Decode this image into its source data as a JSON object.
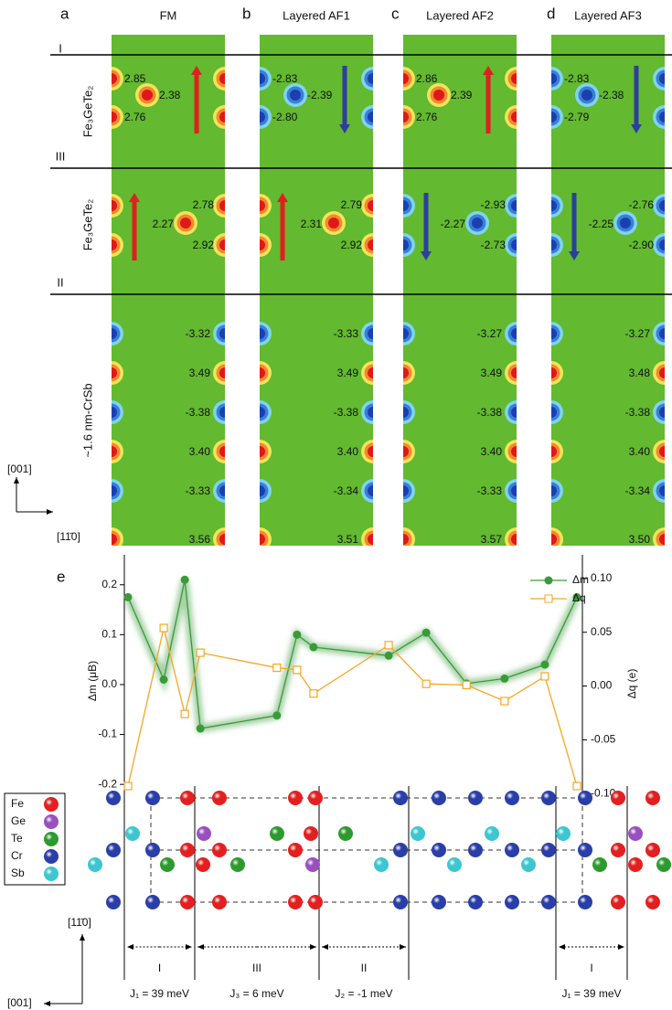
{
  "panels": [
    {
      "letter": "a",
      "title": "FM",
      "rows": [
        [
          "2.85",
          "2.38",
          "2.76"
        ],
        [
          "2.78",
          "2.27",
          "2.92"
        ],
        [
          "-3.32",
          "3.49",
          "-3.38",
          "3.40",
          "-3.33",
          "3.56"
        ]
      ]
    },
    {
      "letter": "b",
      "title": "Layered AF1",
      "rows": [
        [
          "-2.83",
          "-2.39",
          "-2.80"
        ],
        [
          "2.79",
          "2.31",
          "2.92"
        ],
        [
          "-3.33",
          "3.49",
          "-3.38",
          "3.40",
          "-3.34",
          "3.51"
        ]
      ]
    },
    {
      "letter": "c",
      "title": "Layered AF2",
      "rows": [
        [
          "2.86",
          "2.39",
          "2.76"
        ],
        [
          "-2.93",
          "-2.27",
          "-2.73"
        ],
        [
          "-3.27",
          "3.49",
          "-3.38",
          "3.40",
          "-3.33",
          "3.57"
        ]
      ]
    },
    {
      "letter": "d",
      "title": "Layered AF3",
      "rows": [
        [
          "-2.83",
          "-2.38",
          "-2.79"
        ],
        [
          "-2.76",
          "-2.25",
          "-2.90"
        ],
        [
          "-3.27",
          "3.48",
          "-3.38",
          "3.40",
          "-3.34",
          "3.50"
        ]
      ]
    }
  ],
  "layers": [
    "I",
    "III",
    "II"
  ],
  "row_labels": [
    "Fe₃GeTe₂",
    "Fe₃GeTe₂",
    "~1.6 nm-CrSb"
  ],
  "axes_top": [
    "[001]",
    "[11̄0]"
  ],
  "chart_data": {
    "type": "line",
    "label": "e",
    "ylabel": "Δm (μB)",
    "y2label": "Δq (e)",
    "x": [
      0.008,
      0.086,
      0.132,
      0.166,
      0.333,
      0.377,
      0.413,
      0.577,
      0.659,
      0.747,
      0.83,
      0.918,
      0.988
    ],
    "xlim": [
      0,
      1
    ],
    "ylim": [
      -0.24,
      0.26
    ],
    "yticks": [
      -0.2,
      -0.1,
      {
        "value": 0,
        "label": "0.0"
      },
      0.1,
      0.2
    ],
    "y2lim": [
      -0.11,
      0.122
    ],
    "y2ticks": [
      {
        "value": -0.1,
        "label": "-0.10"
      },
      -0.05,
      {
        "value": 0,
        "label": "0.00"
      },
      0.05,
      {
        "value": 0.1,
        "label": "0.10"
      }
    ],
    "series": [
      {
        "name": "Δm",
        "color": "#3a9a3a",
        "marker": "circle",
        "values": [
          0.175,
          0.01,
          0.21,
          -0.088,
          -0.062,
          0.1,
          0.075,
          0.058,
          0.104,
          0.002,
          0.012,
          0.04,
          0.175
        ]
      },
      {
        "name": "Δq",
        "color": "#f5a623",
        "marker": "square",
        "axis": "y2",
        "values": [
          -0.093,
          0.054,
          -0.026,
          0.031,
          0.017,
          0.015,
          -0.007,
          0.038,
          0.002,
          0.001,
          -0.014,
          0.009,
          -0.093
        ]
      }
    ],
    "legend": "upper right"
  },
  "structure": {
    "legend": [
      "Fe",
      "Ge",
      "Te",
      "Cr",
      "Sb"
    ],
    "layers": [
      "I",
      "III",
      "II",
      "I"
    ],
    "couplings": [
      "J₁ = 39 meV",
      "J₃ = 6 meV",
      "J₂ = -1 meV",
      "J₁ = 39 meV"
    ],
    "axes": [
      "[11̄0]",
      "[001]"
    ]
  }
}
